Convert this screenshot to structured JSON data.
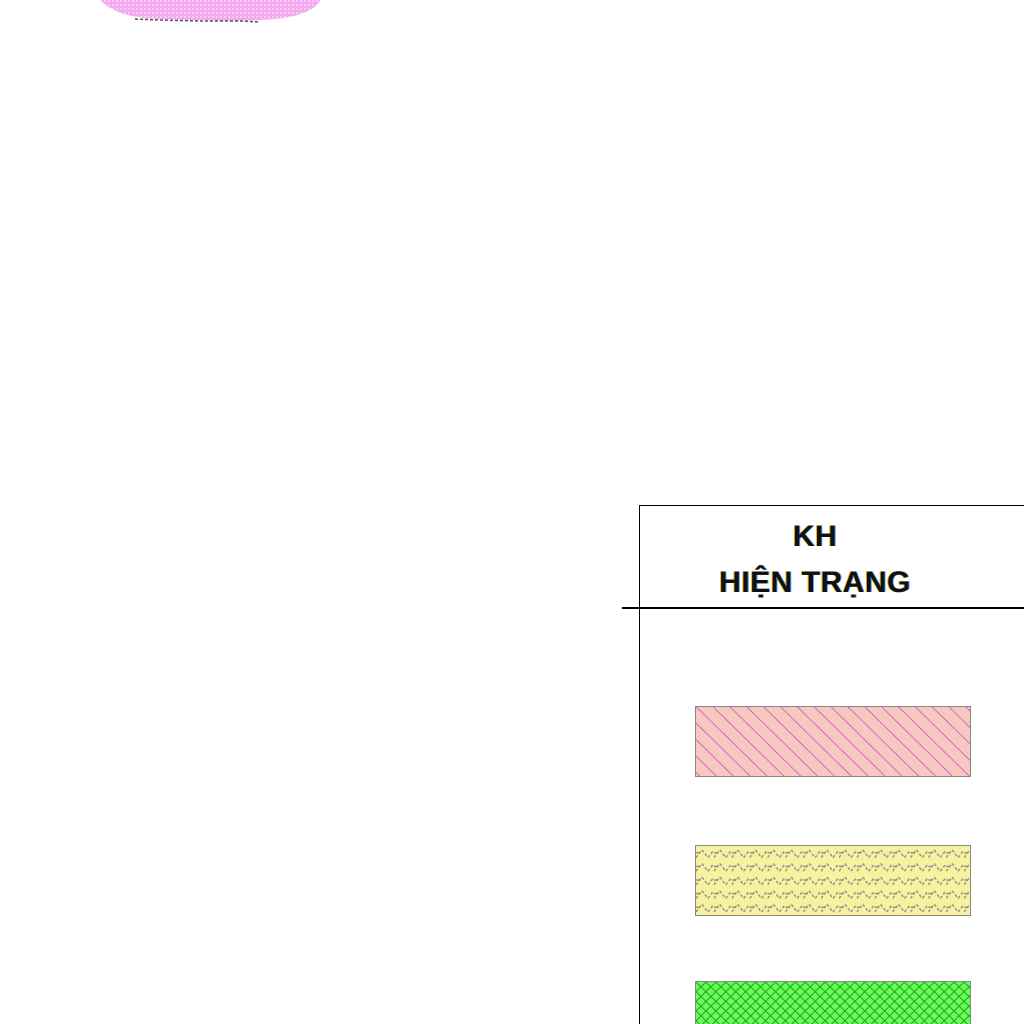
{
  "legend": {
    "title_line1": "KH",
    "title_line2": "HIỆN TRẠNG",
    "swatches": [
      {
        "fill": "#f7c8c0",
        "stroke": "#d020c0",
        "pattern": "diagonal-hatch"
      },
      {
        "fill": "#f8f2a0",
        "stroke": "#8a8a8a",
        "pattern": "dashed-zigzag"
      },
      {
        "fill": "#66ff55",
        "stroke": "#2a9a2a",
        "pattern": "cross-hatch"
      }
    ]
  },
  "map": {
    "blob_fill": "#f3a8f0"
  }
}
